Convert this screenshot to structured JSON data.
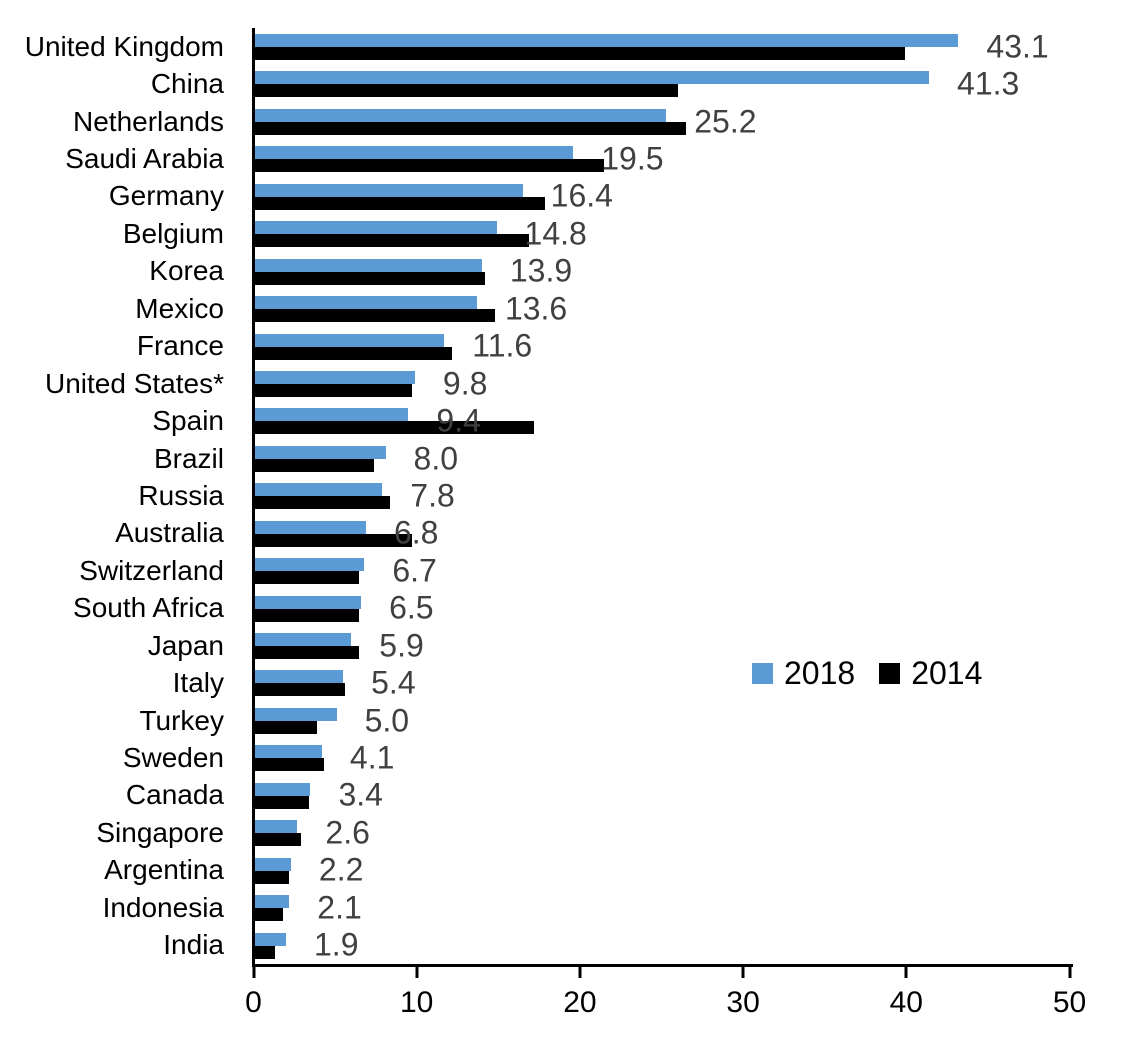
{
  "chart_data": {
    "type": "bar",
    "orientation": "horizontal",
    "title": "",
    "xlabel": "",
    "ylabel": "",
    "xlim": [
      0,
      50
    ],
    "x_ticks": [
      "0",
      "10",
      "20",
      "30",
      "40",
      "50"
    ],
    "grid": false,
    "legend_position": "middle-right",
    "categories": [
      "United Kingdom",
      "China",
      "Netherlands",
      "Saudi Arabia",
      "Germany",
      "Belgium",
      "Korea",
      "Mexico",
      "France",
      "United States*",
      "Spain",
      "Brazil",
      "Russia",
      "Australia",
      "Switzerland",
      "South Africa",
      "Japan",
      "Italy",
      "Turkey",
      "Sweden",
      "Canada",
      "Singapore",
      "Argentina",
      "Indonesia",
      "India"
    ],
    "series": [
      {
        "name": "2018",
        "color": "#5B9BD5",
        "values": [
          43.1,
          41.3,
          25.2,
          19.5,
          16.4,
          14.8,
          13.9,
          13.6,
          11.6,
          9.8,
          9.4,
          8.0,
          7.8,
          6.8,
          6.7,
          6.5,
          5.9,
          5.4,
          5.0,
          4.1,
          3.4,
          2.6,
          2.2,
          2.1,
          1.9
        ]
      },
      {
        "name": "2014",
        "color": "#000000",
        "values": [
          39.8,
          25.9,
          26.4,
          21.4,
          17.8,
          16.8,
          14.1,
          14.7,
          12.1,
          9.6,
          17.1,
          7.3,
          8.3,
          9.6,
          6.4,
          6.4,
          6.4,
          5.5,
          3.8,
          4.2,
          3.3,
          2.8,
          2.1,
          1.7,
          1.2
        ]
      }
    ],
    "value_labels": [
      "43.1",
      "41.3",
      "25.2",
      "19.5",
      "16.4",
      "14.8",
      "13.9",
      "13.6",
      "11.6",
      "9.8",
      "9.4",
      "8.0",
      "7.8",
      "6.8",
      "6.7",
      "6.5",
      "5.9",
      "5.4",
      "5.0",
      "4.1",
      "3.4",
      "2.6",
      "2.2",
      "2.1",
      "1.9"
    ]
  },
  "colors": {
    "series_2018": "#5B9BD5",
    "series_2014": "#000000",
    "value_label_text": "#404040",
    "axis": "#000000"
  }
}
